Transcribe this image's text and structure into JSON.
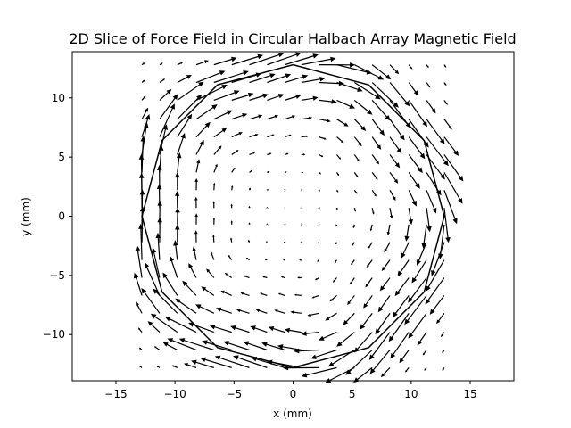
{
  "chart_data": {
    "type": "quiver",
    "title": "2D Slice of Force Field in Circular Halbach Array Magnetic Field",
    "xlabel": "x (mm)",
    "ylabel": "y (mm)",
    "xlim": [
      -18.7,
      18.7
    ],
    "ylim": [
      -13.9,
      13.9
    ],
    "xticks": [
      -15,
      -10,
      -5,
      0,
      5,
      10,
      15
    ],
    "yticks": [
      -10,
      -5,
      0,
      5,
      10
    ],
    "xticklabels": [
      "−15",
      "−10",
      "−5",
      "0",
      "5",
      "10",
      "15"
    ],
    "yticklabels": [
      "−10",
      "−5",
      "0",
      "5",
      "10"
    ],
    "grid": false,
    "legend": "none",
    "colors": {
      "arrows": "#000000",
      "outline": "#000000",
      "frame": "#000000"
    },
    "field": {
      "grid_x": [
        -12.8,
        -11.3,
        -9.8,
        -8.2,
        -6.7,
        -5.2,
        -3.7,
        -2.2,
        -0.7,
        0.7,
        2.2,
        3.7,
        5.2,
        6.7,
        8.2,
        9.8,
        11.3,
        12.8
      ],
      "grid_y": [
        -12.8,
        -11.3,
        -9.8,
        -8.2,
        -6.7,
        -5.2,
        -3.7,
        -2.2,
        -0.7,
        0.7,
        2.2,
        3.7,
        5.2,
        6.7,
        8.2,
        9.8,
        11.3,
        12.8
      ],
      "description": "Tangential (clockwise) force vectors around a polygonal Halbach magnet outline; magnitude grows toward the magnet boundary"
    },
    "outline": {
      "x": [
        0,
        6.4,
        11.1,
        12.8,
        11.1,
        6.4,
        0,
        -6.4,
        -11.1,
        -12.8,
        -11.1,
        -6.4,
        0
      ],
      "y": [
        12.8,
        11.1,
        6.4,
        0,
        -6.4,
        -11.1,
        -12.8,
        -11.1,
        -6.4,
        0,
        6.4,
        11.1,
        12.8
      ]
    }
  }
}
